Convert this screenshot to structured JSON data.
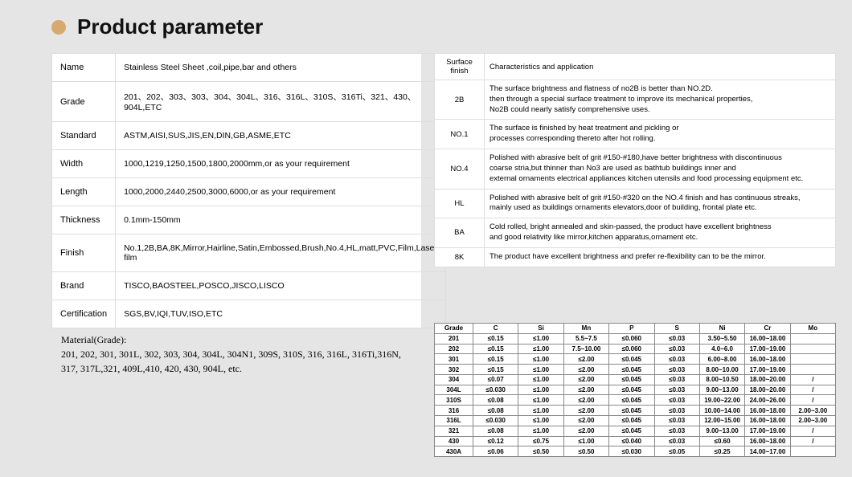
{
  "title": "Product parameter",
  "dot_color": "#d6a96e",
  "spec": {
    "rows": [
      {
        "label": "Name",
        "value": "Stainless Steel Sheet ,coil,pipe,bar and others"
      },
      {
        "label": "Grade",
        "value": "201、202、303、303、304、304L、316、316L、310S、316Ti、321、430、904L,ETC"
      },
      {
        "label": "Standard",
        "value": "ASTM,AISI,SUS,JIS,EN,DIN,GB,ASME,ETC"
      },
      {
        "label": "Width",
        "value": "1000,1219,1250,1500,1800,2000mm,or as your requirement"
      },
      {
        "label": "Length",
        "value": "1000,2000,2440,2500,3000,6000,or as your requirement"
      },
      {
        "label": "Thickness",
        "value": "0.1mm-150mm"
      },
      {
        "label": "Finish",
        "value": "No.1,2B,BA,8K,Mirror,Hairline,Satin,Embossed,Brush,No.4,HL,matt,PVC,Film,Laser film"
      },
      {
        "label": "Brand",
        "value": "TISCO,BAOSTEEL,POSCO,JISCO,LISCO"
      },
      {
        "label": "Certification",
        "value": "SGS,BV,IQI,TUV,ISO,ETC"
      }
    ]
  },
  "surface": {
    "head": {
      "c1": "Surface finish",
      "c2": "Characteristics and application"
    },
    "rows": [
      {
        "k": "2B",
        "v": "The surface brightness and flatness of no2B is better than NO.2D.\n then through a special surface treatment to improve its mechanical properties,\nNo2B could nearly satisfy comprehensive uses."
      },
      {
        "k": "NO.1",
        "v": "The surface is finished by heat treatment and pickling or\nprocesses corresponding thereto after hot rolling."
      },
      {
        "k": "NO.4",
        "v": "Polished with abrasive belt of grit #150-#180,have better brightness with discontinuous\ncoarse stria,but thinner than No3 are used as bathtub buildings inner and\nexternal ornaments electrical appliances kitchen utensils and food processing equipment etc."
      },
      {
        "k": "HL",
        "v": "Polished with abrasive belt of grit #150-#320 on the NO.4 finish and has continuous streaks,\n mainly used as buildings ornaments elevators,door of building, frontal plate etc."
      },
      {
        "k": "BA",
        "v": "Cold rolled, bright annealed and skin-passed, the product have excellent brightness\nand good relativity like mirror,kitchen apparatus,ornament etc."
      },
      {
        "k": "8K",
        "v": "The product have excellent brightness and prefer re-flexibility can to be the mirror."
      }
    ]
  },
  "material": {
    "head": "Material(Grade):",
    "body": "201, 202, 301, 301L, 302, 303, 304, 304L, 304N1, 309S, 310S, 316, 316L, 316Ti,316N, 317, 317L,321, 409L,410, 420, 430, 904L, etc."
  },
  "comp": {
    "columns": [
      "Grade",
      "C",
      "Si",
      "Mn",
      "P",
      "S",
      "Ni",
      "Cr",
      "Mo"
    ],
    "rows": [
      [
        "201",
        "≤0.15",
        "≤1.00",
        "5.5~7.5",
        "≤0.060",
        "≤0.03",
        "3.50~5.50",
        "16.00~18.00",
        ""
      ],
      [
        "202",
        "≤0.15",
        "≤1.00",
        "7.5~10.00",
        "≤0.060",
        "≤0.03",
        "4.0~6.0",
        "17.00~19.00",
        ""
      ],
      [
        "301",
        "≤0.15",
        "≤1.00",
        "≤2.00",
        "≤0.045",
        "≤0.03",
        "6.00~8.00",
        "16.00~18.00",
        ""
      ],
      [
        "302",
        "≤0.15",
        "≤1.00",
        "≤2.00",
        "≤0.045",
        "≤0.03",
        "8.00~10.00",
        "17.00~19.00",
        ""
      ],
      [
        "304",
        "≤0.07",
        "≤1.00",
        "≤2.00",
        "≤0.045",
        "≤0.03",
        "8.00~10.50",
        "18.00~20.00",
        "/"
      ],
      [
        "304L",
        "≤0.030",
        "≤1.00",
        "≤2.00",
        "≤0.045",
        "≤0.03",
        "9.00~13.00",
        "18.00~20.00",
        "/"
      ],
      [
        "310S",
        "≤0.08",
        "≤1.00",
        "≤2.00",
        "≤0.045",
        "≤0.03",
        "19.00~22.00",
        "24.00~26.00",
        "/"
      ],
      [
        "316",
        "≤0.08",
        "≤1.00",
        "≤2.00",
        "≤0.045",
        "≤0.03",
        "10.00~14.00",
        "16.00~18.00",
        "2.00~3.00"
      ],
      [
        "316L",
        "≤0.030",
        "≤1.00",
        "≤2.00",
        "≤0.045",
        "≤0.03",
        "12.00~15.00",
        "16.00~18.00",
        "2.00~3.00"
      ],
      [
        "321",
        "≤0.08",
        "≤1.00",
        "≤2.00",
        "≤0.045",
        "≤0.03",
        "9.00~13.00",
        "17.00~19.00",
        "/"
      ],
      [
        "430",
        "≤0.12",
        "≤0.75",
        "≤1.00",
        "≤0.040",
        "≤0.03",
        "≤0.60",
        "16.00~18.00",
        "/"
      ],
      [
        "430A",
        "≤0.06",
        "≤0.50",
        "≤0.50",
        "≤0.030",
        "≤0.05",
        "≤0.25",
        "14.00~17.00",
        ""
      ]
    ]
  }
}
